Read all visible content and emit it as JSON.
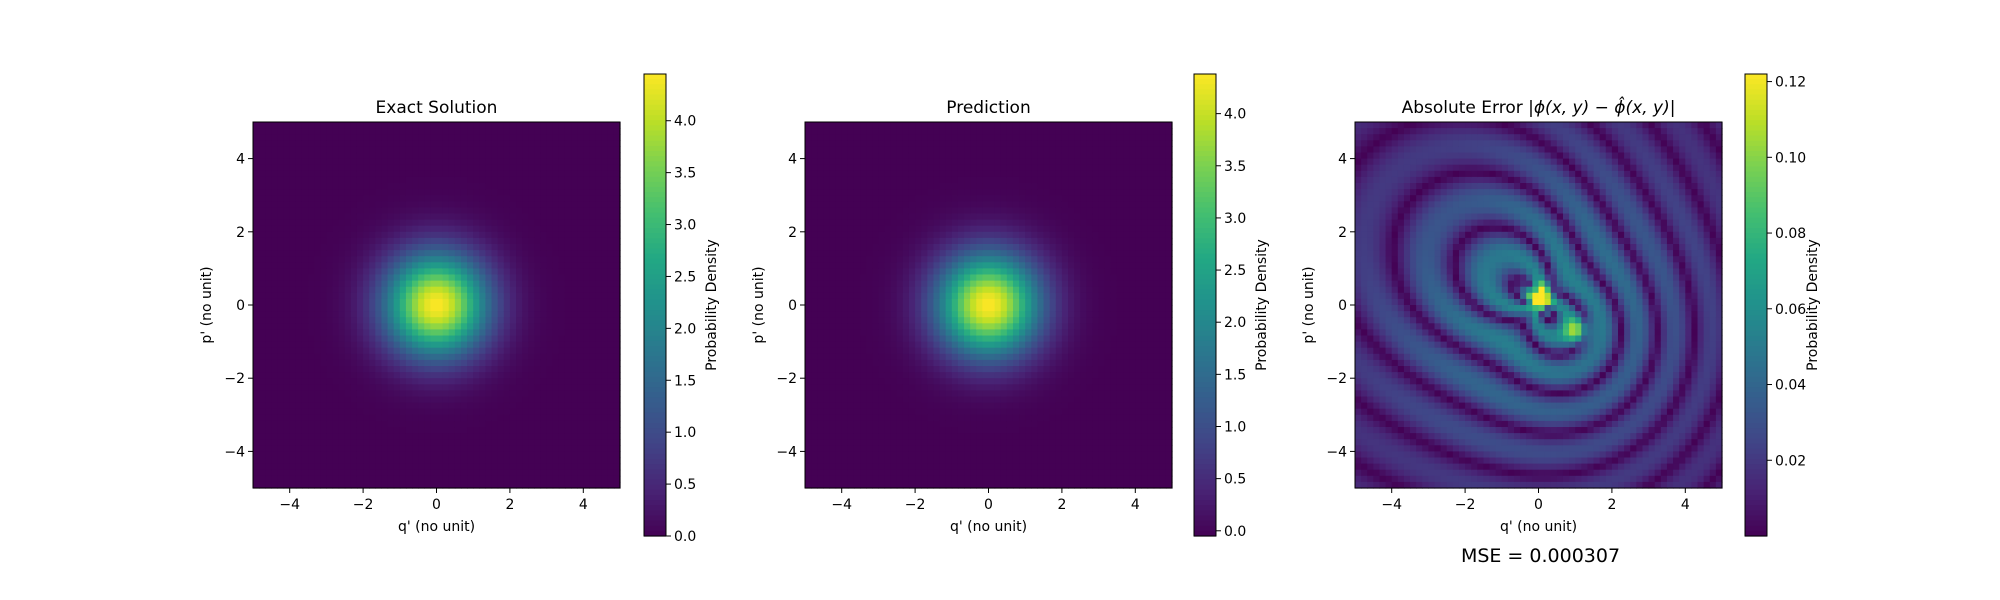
{
  "chart_data": [
    {
      "type": "heatmap",
      "title": "Exact Solution",
      "xlabel": "q' (no unit)",
      "ylabel": "p' (no unit)",
      "xlim": [
        -5,
        5
      ],
      "ylim": [
        -5,
        5
      ],
      "xticks": [
        "−4",
        "−2",
        "0",
        "2",
        "4"
      ],
      "yticks": [
        "−4",
        "−2",
        "0",
        "2",
        "4"
      ],
      "colormap": "viridis",
      "field": "gaussian",
      "peak_center": [
        0,
        0
      ],
      "colorbar": {
        "label": "Probability Density",
        "range": [
          0,
          4.45
        ],
        "ticks": [
          "0.0",
          "0.5",
          "1.0",
          "1.5",
          "2.0",
          "2.5",
          "3.0",
          "3.5",
          "4.0"
        ]
      }
    },
    {
      "type": "heatmap",
      "title": "Prediction",
      "xlabel": "q' (no unit)",
      "ylabel": "p' (no unit)",
      "xlim": [
        -5,
        5
      ],
      "ylim": [
        -5,
        5
      ],
      "xticks": [
        "−4",
        "−2",
        "0",
        "2",
        "4"
      ],
      "yticks": [
        "−4",
        "−2",
        "0",
        "2",
        "4"
      ],
      "colormap": "viridis",
      "field": "gaussian",
      "peak_center": [
        0,
        0
      ],
      "colorbar": {
        "label": "Probability Density",
        "range": [
          -0.05,
          4.38
        ],
        "ticks": [
          "0.0",
          "0.5",
          "1.0",
          "1.5",
          "2.0",
          "2.5",
          "3.0",
          "3.5",
          "4.0"
        ]
      }
    },
    {
      "type": "heatmap",
      "title_text": "Absolute Error ",
      "title_math": "|ϕ(x, y) − ϕ̂(x, y)|",
      "xlabel": "q' (no unit)",
      "ylabel": "p' (no unit)",
      "xlim": [
        -5,
        5
      ],
      "ylim": [
        -5,
        5
      ],
      "xticks": [
        "−4",
        "−2",
        "0",
        "2",
        "4"
      ],
      "yticks": [
        "−4",
        "−2",
        "0",
        "2",
        "4"
      ],
      "colormap": "viridis",
      "field": "error",
      "colorbar": {
        "label": "Probability Density",
        "range": [
          0.0,
          0.122
        ],
        "ticks": [
          "0.02",
          "0.04",
          "0.06",
          "0.08",
          "0.10",
          "0.12"
        ]
      },
      "annotation": "MSE = 0.000307"
    }
  ]
}
